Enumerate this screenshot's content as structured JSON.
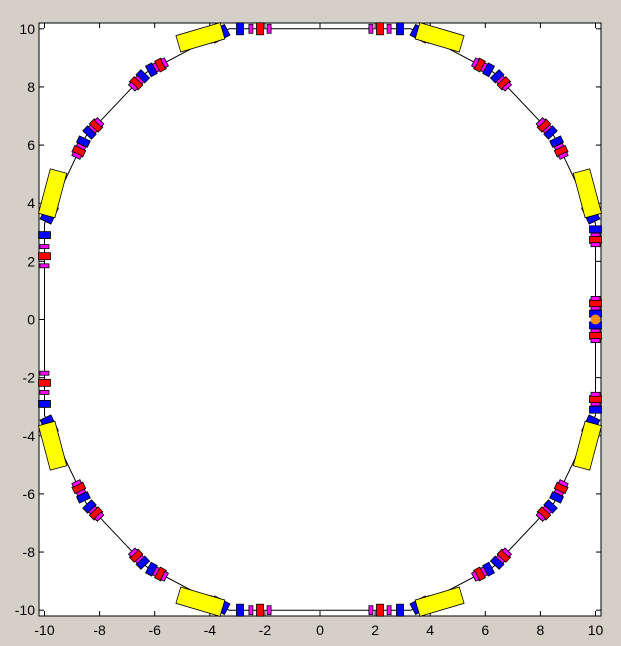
{
  "chart_data": {
    "type": "scatter",
    "title": "",
    "xlabel": "",
    "ylabel": "",
    "xlim": [
      -10.2,
      10.2
    ],
    "ylim": [
      -10.2,
      10.2
    ],
    "x_ticks": [
      -10,
      -8,
      -6,
      -4,
      -2,
      0,
      2,
      4,
      6,
      8,
      10
    ],
    "x_tick_labels": [
      "-10",
      "-8",
      "-6",
      "-4",
      "-2",
      "0",
      "2",
      "4",
      "6",
      "8",
      "10"
    ],
    "y_ticks": [
      10,
      8,
      6,
      4,
      2,
      0,
      -2,
      -4,
      -6,
      -8,
      -10
    ],
    "y_tick_labels": [
      "10",
      "8",
      "6",
      "4",
      "2",
      "0",
      "-2",
      "-4",
      "-6",
      "-8",
      "-10"
    ],
    "grid": false,
    "ring_path": [
      [
        10,
        0
      ],
      [
        10,
        3.3
      ],
      [
        8.5,
        6.3
      ],
      [
        6.3,
        8.5
      ],
      [
        3.3,
        10
      ],
      [
        -3.3,
        10
      ],
      [
        -6.3,
        8.5
      ],
      [
        -8.5,
        6.3
      ],
      [
        -10,
        3.3
      ],
      [
        -10,
        -3.3
      ],
      [
        -8.5,
        -6.3
      ],
      [
        -6.3,
        -8.5
      ],
      [
        -3.3,
        -10
      ],
      [
        3.3,
        -10
      ],
      [
        6.3,
        -8.5
      ],
      [
        8.5,
        -6.3
      ],
      [
        10,
        -3.3
      ],
      [
        10,
        0
      ]
    ],
    "marker": {
      "x": 10,
      "y": 0,
      "color": "#ff8c00"
    },
    "colors": {
      "bending_magnet": "#ffff00",
      "quad_focus": "#ff0000",
      "quad_defocus": "#0000ff",
      "corrector": "#ff00ff",
      "outline": "#000000"
    }
  }
}
